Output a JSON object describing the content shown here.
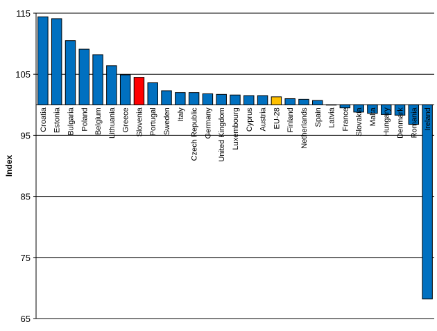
{
  "chart_data": {
    "type": "bar",
    "ylabel": "Index",
    "ylim": [
      65,
      115
    ],
    "yticks": [
      65,
      75,
      85,
      95,
      105,
      115
    ],
    "baseline": 100,
    "grid": true,
    "categories": [
      "Croatia",
      "Estonia",
      "Bulgaria",
      "Poland",
      "Belgium",
      "Lithuania",
      "Greece",
      "Slovenia",
      "Portugal",
      "Sweden",
      "Italy",
      "Czech Republic",
      "Germany",
      "United Kingdom",
      "Luxembourg",
      "Cyprus",
      "Austria",
      "EU-28",
      "Finland",
      "Netherlands",
      "Spain",
      "Latvia",
      "France",
      "Slovakia",
      "Malta",
      "Hungary",
      "Denmark",
      "Romania",
      "Ireland"
    ],
    "values": [
      114.4,
      114.1,
      110.5,
      109.1,
      108.2,
      106.4,
      104.9,
      104.5,
      103.6,
      102.3,
      102.0,
      102.0,
      101.8,
      101.7,
      101.6,
      101.5,
      101.5,
      101.3,
      101.0,
      100.9,
      100.7,
      100.0,
      99.5,
      98.8,
      98.6,
      98.4,
      98.3,
      96.8,
      68.2
    ],
    "colors": {
      "default": "#0070C0",
      "highlight": "#FF0000",
      "eu": "#FFC000"
    },
    "highlight_category": "Slovenia",
    "eu_category": "EU-28"
  }
}
